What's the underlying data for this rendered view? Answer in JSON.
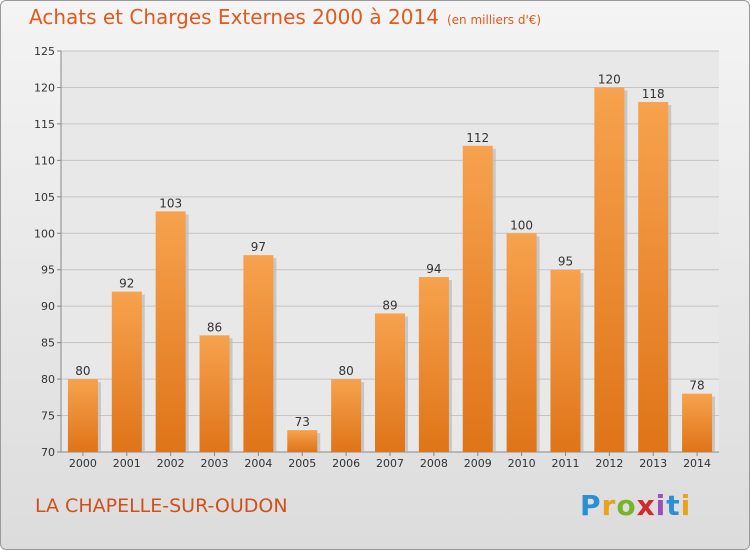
{
  "chart_data": {
    "type": "bar",
    "title": "Achats et Charges Externes 2000 à 2014",
    "subtitle": "(en milliers d'€)",
    "categories": [
      "2000",
      "2001",
      "2002",
      "2003",
      "2004",
      "2005",
      "2006",
      "2007",
      "2008",
      "2009",
      "2010",
      "2011",
      "2012",
      "2013",
      "2014"
    ],
    "values": [
      80,
      92,
      103,
      86,
      97,
      73,
      80,
      89,
      94,
      112,
      100,
      95,
      120,
      118,
      78
    ],
    "ylim": [
      70,
      125
    ],
    "yticks": [
      70,
      75,
      80,
      85,
      90,
      95,
      100,
      105,
      110,
      115,
      120,
      125
    ],
    "grid": true,
    "bar_color": "#f2922e",
    "bar_shadow_color": "#c46a1a"
  },
  "footer": {
    "place": "LA CHAPELLE-SUR-OUDON",
    "logo": [
      "P",
      "r",
      "o",
      "x",
      "i",
      "t",
      "i"
    ]
  },
  "colors": {
    "title": "#e05a1e",
    "place": "#d0501a"
  }
}
